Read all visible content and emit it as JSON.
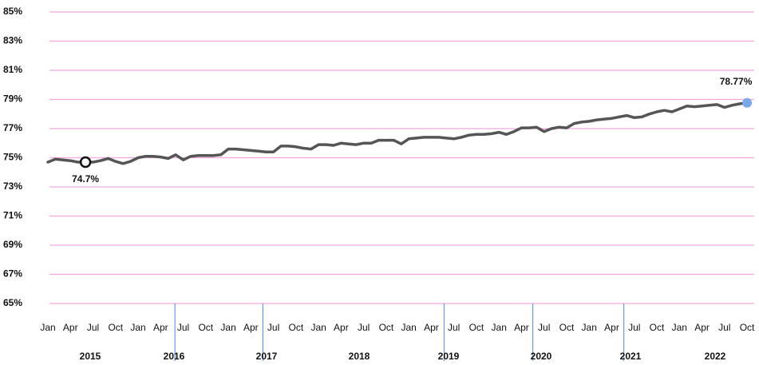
{
  "chart_data": {
    "type": "line",
    "categories": [
      "Jan",
      null,
      null,
      "Apr",
      null,
      null,
      "Jul",
      null,
      null,
      "Oct",
      null,
      null,
      "Jan",
      null,
      null,
      "Apr",
      null,
      null,
      "Jul",
      null,
      null,
      "Oct",
      null,
      null,
      "Jan",
      null,
      null,
      "Apr",
      null,
      null,
      "Jul",
      null,
      null,
      "Oct",
      null,
      null,
      "Jan",
      null,
      null,
      "Apr",
      null,
      null,
      "Jul",
      null,
      null,
      "Oct",
      null,
      null,
      "Jan",
      null,
      null,
      "Apr",
      null,
      null,
      "Jul",
      null,
      null,
      "Oct",
      null,
      null,
      "Jan",
      null,
      null,
      "Apr",
      null,
      null,
      "Jul",
      null,
      null,
      "Oct",
      null,
      null,
      "Jan",
      null,
      null,
      "Apr",
      null,
      null,
      "Jul",
      null,
      null,
      "Oct",
      null,
      null,
      "Jan",
      null,
      null,
      "Apr",
      null,
      null,
      "Jul",
      null,
      null,
      "Oct"
    ],
    "years": [
      "2015",
      "2016",
      "2017",
      "2018",
      "2019",
      "2020",
      "2021",
      "2022"
    ],
    "values": [
      74.7,
      74.9,
      74.85,
      74.8,
      74.7,
      74.7,
      74.7,
      74.8,
      74.95,
      74.75,
      74.6,
      74.75,
      75.0,
      75.1,
      75.1,
      75.05,
      74.95,
      75.2,
      74.85,
      75.1,
      75.15,
      75.15,
      75.15,
      75.2,
      75.6,
      75.6,
      75.55,
      75.5,
      75.45,
      75.4,
      75.4,
      75.8,
      75.8,
      75.75,
      75.65,
      75.6,
      75.9,
      75.9,
      75.85,
      76.0,
      75.95,
      75.9,
      76.0,
      76.0,
      76.2,
      76.2,
      76.2,
      75.95,
      76.3,
      76.35,
      76.4,
      76.4,
      76.4,
      76.35,
      76.3,
      76.4,
      76.55,
      76.6,
      76.6,
      76.65,
      76.75,
      76.6,
      76.8,
      77.05,
      77.05,
      77.1,
      76.8,
      77.0,
      77.1,
      77.05,
      77.35,
      77.45,
      77.5,
      77.6,
      77.65,
      77.7,
      77.8,
      77.9,
      77.75,
      77.8,
      78.0,
      78.15,
      78.25,
      78.15,
      78.35,
      78.55,
      78.5,
      78.55,
      78.6,
      78.65,
      78.45,
      78.6,
      78.7,
      78.77
    ],
    "value_labels": [
      null,
      null,
      null,
      null,
      null,
      "74.7%",
      null,
      null,
      null,
      null,
      null,
      null,
      null,
      null,
      null,
      null,
      null,
      null,
      null,
      null,
      null,
      null,
      null,
      null,
      null,
      null,
      null,
      null,
      null,
      null,
      null,
      null,
      null,
      null,
      null,
      null,
      null,
      null,
      null,
      null,
      null,
      null,
      null,
      null,
      null,
      null,
      null,
      null,
      null,
      null,
      null,
      null,
      null,
      null,
      null,
      null,
      null,
      null,
      null,
      null,
      null,
      null,
      null,
      null,
      null,
      null,
      null,
      null,
      null,
      null,
      null,
      null,
      null,
      null,
      null,
      null,
      null,
      null,
      null,
      null,
      null,
      null,
      null,
      null,
      null,
      null,
      null,
      null,
      null,
      null,
      null,
      null,
      null,
      "78.77%"
    ],
    "color": "#555555",
    "ylim": [
      65,
      85
    ],
    "yticks": [
      {
        "value": 65,
        "label": "65%"
      },
      {
        "value": 67,
        "label": "67%"
      },
      {
        "value": 69,
        "label": "69%"
      },
      {
        "value": 71,
        "label": "71%"
      },
      {
        "value": 73,
        "label": "73%"
      },
      {
        "value": 75,
        "label": "75%"
      },
      {
        "value": 77,
        "label": "77%"
      },
      {
        "value": 79,
        "label": "79%"
      },
      {
        "value": 81,
        "label": "81%"
      },
      {
        "value": 83,
        "label": "83%"
      },
      {
        "value": 85,
        "label": "85%"
      }
    ],
    "grid": true
  }
}
